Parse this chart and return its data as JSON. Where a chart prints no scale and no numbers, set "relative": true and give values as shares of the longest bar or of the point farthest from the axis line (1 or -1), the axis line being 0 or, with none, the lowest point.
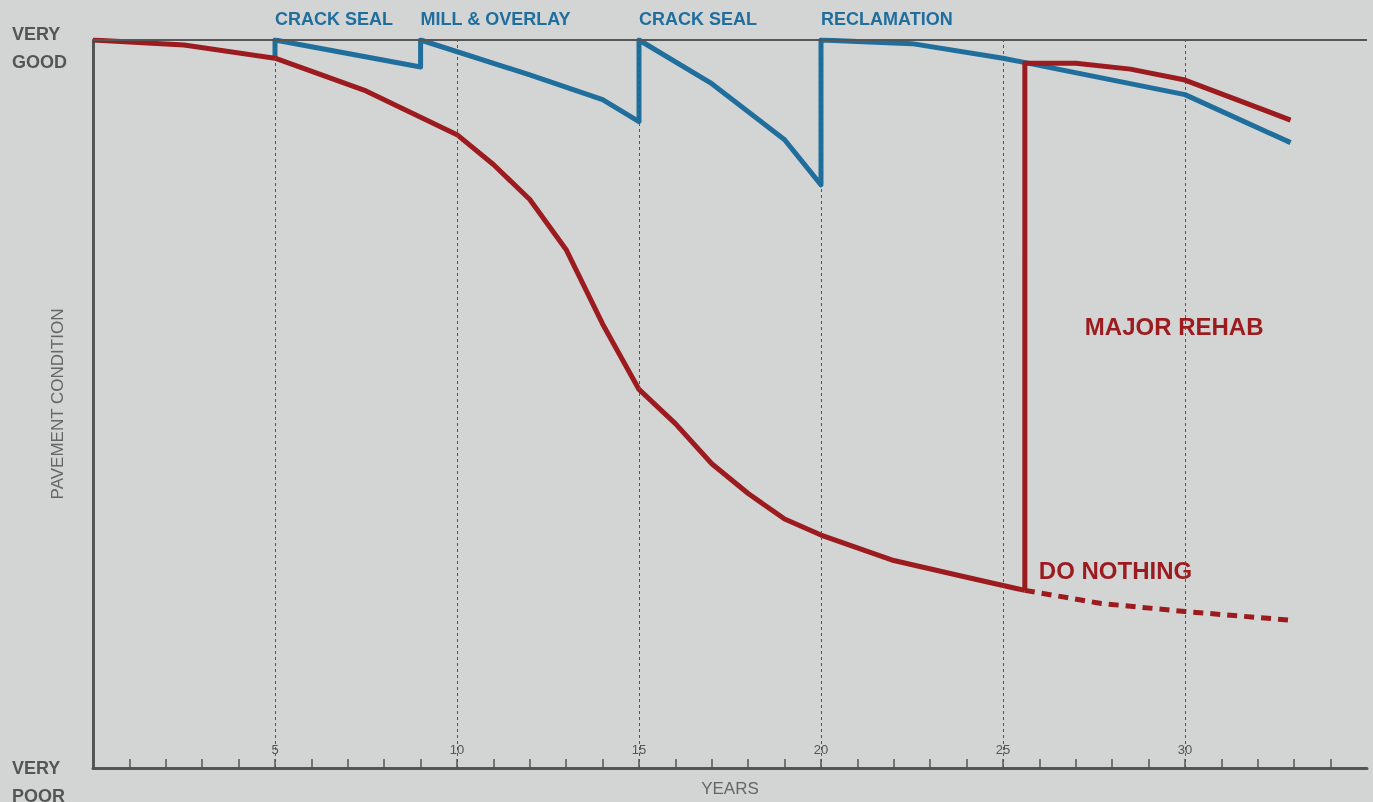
{
  "chart_data": {
    "type": "line",
    "relative": true,
    "xlabel": "YEARS",
    "ylabel": "PAVEMENT CONDITION",
    "xlim": [
      0,
      35
    ],
    "xticks": [
      {
        "value": 1,
        "label": null
      },
      {
        "value": 2,
        "label": null
      },
      {
        "value": 3,
        "label": null
      },
      {
        "value": 4,
        "label": null
      },
      5,
      {
        "value": 6,
        "label": null
      },
      {
        "value": 7,
        "label": null
      },
      {
        "value": 8,
        "label": null
      },
      {
        "value": 9,
        "label": null
      },
      10,
      {
        "value": 11,
        "label": null
      },
      {
        "value": 12,
        "label": null
      },
      {
        "value": 13,
        "label": null
      },
      {
        "value": 14,
        "label": null
      },
      15,
      {
        "value": 16,
        "label": null
      },
      {
        "value": 17,
        "label": null
      },
      {
        "value": 18,
        "label": null
      },
      {
        "value": 19,
        "label": null
      },
      20,
      {
        "value": 21,
        "label": null
      },
      {
        "value": 22,
        "label": null
      },
      {
        "value": 23,
        "label": null
      },
      {
        "value": 24,
        "label": null
      },
      25,
      {
        "value": 26,
        "label": null
      },
      {
        "value": 27,
        "label": null
      },
      {
        "value": 28,
        "label": null
      },
      {
        "value": 29,
        "label": null
      },
      30,
      {
        "value": 31,
        "label": null
      },
      {
        "value": 32,
        "label": null
      },
      {
        "value": 33,
        "label": null
      },
      {
        "value": 34,
        "label": null
      }
    ],
    "grid": "x",
    "marker": "none",
    "ref_lines": [
      {
        "axis": "y",
        "value": 1,
        "label": null,
        "color": "#555555"
      }
    ],
    "series": [
      {
        "color": "#1f6e9c",
        "x": [
          5,
          5,
          9,
          9,
          12,
          14,
          15,
          15,
          17,
          19,
          20,
          20,
          22.5,
          25,
          30,
          32.9
        ],
        "values": [
          0.975,
          1,
          0.963,
          1,
          0.952,
          0.918,
          0.888,
          1,
          0.94,
          0.863,
          0.801,
          1,
          0.995,
          0.975,
          0.925,
          0.859
        ]
      },
      {
        "name": "DO NOTHING",
        "color": "#9b1b1f",
        "x": [
          0,
          2.5,
          5,
          7.5,
          10,
          11,
          12,
          13,
          14,
          15,
          16,
          17,
          18,
          19,
          20,
          22,
          24,
          25.6
        ],
        "values": [
          1,
          0.993,
          0.975,
          0.93,
          0.87,
          0.829,
          0.781,
          0.712,
          0.61,
          0.52,
          0.473,
          0.418,
          0.377,
          0.342,
          0.32,
          0.285,
          0.262,
          0.244
        ]
      },
      {
        "color": "#9b1b1f",
        "line_style": "dashed",
        "x": [
          25.6,
          27.7,
          30,
          32.9
        ],
        "values": [
          0.244,
          0.226,
          0.215,
          0.203
        ]
      },
      {
        "name": "MAJOR REHAB",
        "color": "#9b1b1f",
        "x": [
          25.6,
          25.6,
          27,
          28.5,
          30,
          32.9
        ],
        "values": [
          0.244,
          0.968,
          0.968,
          0.96,
          0.945,
          0.89
        ]
      }
    ],
    "annotations": [
      "VERY GOOD",
      "VERY POOR",
      {
        "text": "CRACK SEAL",
        "x": 5,
        "y": 1
      },
      {
        "text": "MILL & OVERLAY",
        "x": 9,
        "y": 1
      },
      {
        "text": "CRACK SEAL",
        "x": 15,
        "y": 1
      },
      {
        "text": "RECLAMATION",
        "x": 20,
        "y": 1
      }
    ]
  }
}
